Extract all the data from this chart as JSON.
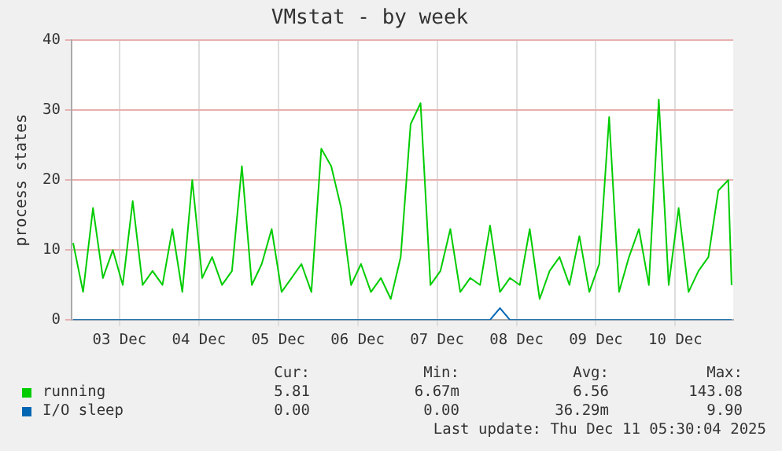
{
  "chart_data": {
    "type": "line",
    "title": "VMstat - by week",
    "ylabel": "process states",
    "x": [
      "2025-12-02T22:00",
      "2025-12-03T01:00",
      "2025-12-03T04:00",
      "2025-12-03T07:00",
      "2025-12-03T10:00",
      "2025-12-03T13:00",
      "2025-12-03T16:00",
      "2025-12-03T19:00",
      "2025-12-03T22:00",
      "2025-12-04T01:00",
      "2025-12-04T04:00",
      "2025-12-04T07:00",
      "2025-12-04T10:00",
      "2025-12-04T13:00",
      "2025-12-04T16:00",
      "2025-12-04T19:00",
      "2025-12-04T22:00",
      "2025-12-05T01:00",
      "2025-12-05T04:00",
      "2025-12-05T07:00",
      "2025-12-05T10:00",
      "2025-12-05T13:00",
      "2025-12-05T16:00",
      "2025-12-05T19:00",
      "2025-12-05T22:00",
      "2025-12-06T01:00",
      "2025-12-06T04:00",
      "2025-12-06T07:00",
      "2025-12-06T10:00",
      "2025-12-06T13:00",
      "2025-12-06T16:00",
      "2025-12-06T19:00",
      "2025-12-06T22:00",
      "2025-12-07T01:00",
      "2025-12-07T04:00",
      "2025-12-07T07:00",
      "2025-12-07T10:00",
      "2025-12-07T13:00",
      "2025-12-07T16:00",
      "2025-12-07T19:00",
      "2025-12-07T22:00",
      "2025-12-08T01:00",
      "2025-12-08T04:00",
      "2025-12-08T07:00",
      "2025-12-08T10:00",
      "2025-12-08T13:00",
      "2025-12-08T16:00",
      "2025-12-08T19:00",
      "2025-12-08T22:00",
      "2025-12-09T01:00",
      "2025-12-09T04:00",
      "2025-12-09T07:00",
      "2025-12-09T10:00",
      "2025-12-09T13:00",
      "2025-12-09T16:00",
      "2025-12-09T19:00",
      "2025-12-09T22:00",
      "2025-12-10T01:00",
      "2025-12-10T04:00",
      "2025-12-10T07:00",
      "2025-12-10T10:00",
      "2025-12-10T13:00",
      "2025-12-10T16:00",
      "2025-12-10T19:00",
      "2025-12-10T22:00",
      "2025-12-11T01:00",
      "2025-12-11T04:00",
      "2025-12-11T05:00"
    ],
    "series": [
      {
        "name": "running",
        "color": "#00cc00",
        "values": [
          11,
          4,
          16,
          6,
          10,
          5,
          17,
          5,
          7,
          5,
          13,
          4,
          20,
          6,
          9,
          5,
          7,
          22,
          5,
          8,
          13,
          4,
          6,
          8,
          4,
          24.5,
          22,
          16,
          5,
          8,
          4,
          6,
          3,
          9,
          28,
          31,
          5,
          7,
          13,
          4,
          6,
          5,
          13.5,
          4,
          6,
          5,
          13,
          3,
          7,
          9,
          5,
          12,
          4,
          8,
          29,
          4,
          9,
          13,
          5,
          31.5,
          5,
          16,
          4,
          7,
          9,
          18.5,
          20,
          5
        ]
      },
      {
        "name": "I/O sleep",
        "color": "#0066b3",
        "values": [
          0,
          0,
          0,
          0,
          0,
          0,
          0,
          0,
          0,
          0,
          0,
          0,
          0,
          0,
          0,
          0,
          0,
          0,
          0,
          0,
          0,
          0,
          0,
          0,
          0,
          0,
          0,
          0,
          0,
          0,
          0,
          0,
          0,
          0,
          0,
          0,
          0,
          0,
          0,
          0,
          0,
          0,
          0,
          1.7,
          0,
          0,
          0,
          0,
          0,
          0,
          0,
          0,
          0,
          0,
          0,
          0,
          0,
          0,
          0,
          0,
          0,
          0,
          0,
          0,
          0,
          0,
          0,
          0
        ]
      }
    ],
    "xlim": [
      "2025-12-02T21:30",
      "2025-12-11T05:30"
    ],
    "xticks": [
      {
        "value": "2025-12-03T12:00",
        "label": "03 Dec"
      },
      {
        "value": "2025-12-04T12:00",
        "label": "04 Dec"
      },
      {
        "value": "2025-12-05T12:00",
        "label": "05 Dec"
      },
      {
        "value": "2025-12-06T12:00",
        "label": "06 Dec"
      },
      {
        "value": "2025-12-07T12:00",
        "label": "07 Dec"
      },
      {
        "value": "2025-12-08T12:00",
        "label": "08 Dec"
      },
      {
        "value": "2025-12-09T12:00",
        "label": "09 Dec"
      },
      {
        "value": "2025-12-10T12:00",
        "label": "10 Dec"
      }
    ],
    "ylim": [
      0,
      40
    ],
    "yticks": [
      0,
      10,
      20,
      30,
      40
    ],
    "grid": true,
    "legend": "bottom",
    "marker": "none",
    "line_style": "solid",
    "annotations": [
      "Cur:",
      "Min:",
      "Avg:",
      "Max:",
      "5.81",
      "6.67m",
      "6.56",
      "143.08",
      "0.00",
      "0.00",
      "36.29m",
      "9.90",
      "Last update: Thu Dec 11 05:30:04 2025"
    ]
  }
}
